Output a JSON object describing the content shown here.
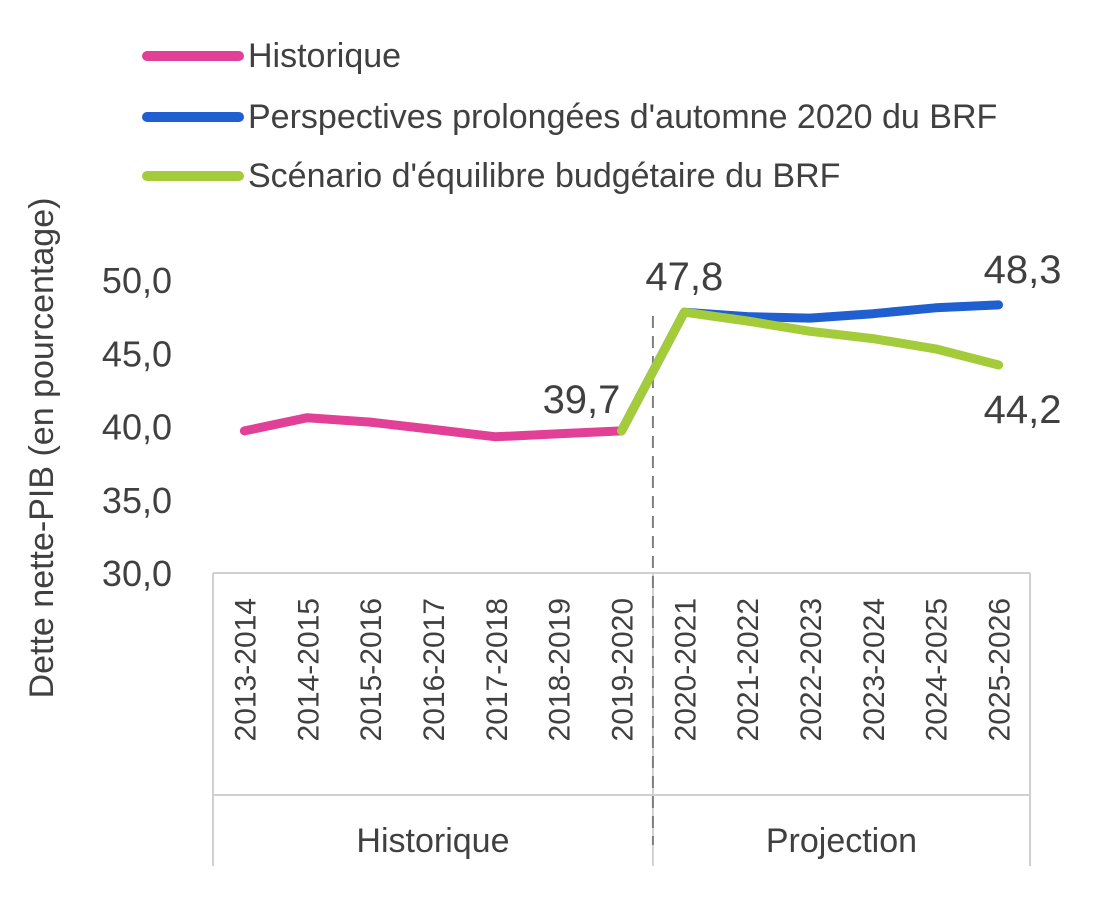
{
  "chart_data": {
    "type": "line",
    "ylabel": "Dette nette-PIB (en pourcentage)",
    "ylim": [
      30,
      50
    ],
    "yticks": [
      "30,0",
      "35,0",
      "40,0",
      "45,0",
      "50,0"
    ],
    "categories": [
      "2013-2014",
      "2014-2015",
      "2015-2016",
      "2016-2017",
      "2017-2018",
      "2018-2019",
      "2019-2020",
      "2020-2021",
      "2021-2022",
      "2022-2023",
      "2023-2024",
      "2024-2025",
      "2025-2026"
    ],
    "groups": [
      {
        "label": "Historique",
        "from": 0,
        "to": 6
      },
      {
        "label": "Projection",
        "from": 7,
        "to": 12
      }
    ],
    "series": [
      {
        "name": "Historique",
        "color": "#e23f96",
        "values": [
          39.7,
          40.6,
          40.3,
          39.8,
          39.3,
          39.5,
          39.7,
          null,
          null,
          null,
          null,
          null,
          null
        ]
      },
      {
        "name": "Perspectives prolongées d'automne 2020 du BRF",
        "color": "#1f5fd0",
        "values": [
          null,
          null,
          null,
          null,
          null,
          null,
          39.7,
          47.8,
          47.5,
          47.4,
          47.7,
          48.1,
          48.3
        ]
      },
      {
        "name": "Scénario d'équilibre budgétaire du BRF",
        "color": "#a4cc3a",
        "values": [
          null,
          null,
          null,
          null,
          null,
          null,
          39.7,
          47.8,
          47.2,
          46.5,
          46.0,
          45.3,
          44.2
        ]
      }
    ],
    "data_labels": [
      {
        "series": 0,
        "index": 6,
        "text": "39,7",
        "pos": "above-left"
      },
      {
        "series": 2,
        "index": 7,
        "text": "47,8",
        "pos": "above"
      },
      {
        "series": 1,
        "index": 12,
        "text": "48,3",
        "pos": "above"
      },
      {
        "series": 2,
        "index": 12,
        "text": "44,2",
        "pos": "below"
      }
    ],
    "divider_after_index": 6,
    "legend_position": "top-left",
    "grid": false
  }
}
